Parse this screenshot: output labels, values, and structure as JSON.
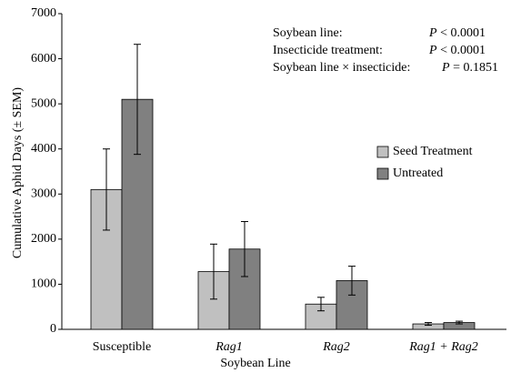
{
  "chart_data": {
    "type": "bar",
    "categories": [
      "Susceptible",
      "Rag1",
      "Rag2",
      "Rag1 + Rag2"
    ],
    "series": [
      {
        "name": "Seed Treatment",
        "color": "#c0c0c0",
        "values": [
          3100,
          1280,
          560,
          120
        ],
        "errors": [
          900,
          610,
          150,
          30
        ]
      },
      {
        "name": "Untreated",
        "color": "#808080",
        "values": [
          5100,
          1780,
          1080,
          150
        ],
        "errors": [
          1220,
          610,
          320,
          30
        ]
      }
    ],
    "ylim": [
      0,
      7000
    ],
    "yticks": [
      0,
      1000,
      2000,
      3000,
      4000,
      5000,
      6000,
      7000
    ],
    "xlabel": "Soybean Line",
    "ylabel": "Cumulative Aphid Days (± SEM)",
    "annotations": [
      {
        "label": "Soybean line:",
        "p_symbol": "P",
        "p_value": "< 0.0001"
      },
      {
        "label": "Insecticide treatment:",
        "p_symbol": "P",
        "p_value": "< 0.0001"
      },
      {
        "label": "Soybean line × insecticide:",
        "p_symbol": "P",
        "p_value": "= 0.1851"
      }
    ],
    "legend": "right",
    "grid": false
  }
}
